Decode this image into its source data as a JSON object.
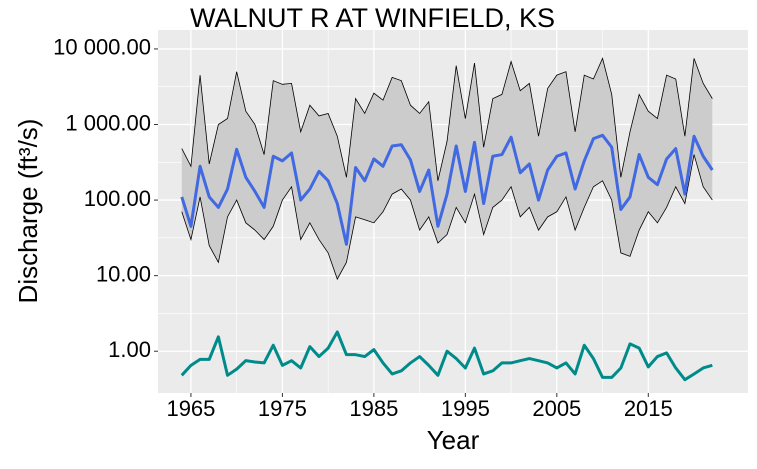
{
  "chart_data": {
    "type": "line",
    "title": "WALNUT R AT WINFIELD, KS",
    "x_label": "Year",
    "y_label": "Discharge (ft³/s)",
    "log_y": true,
    "grid": true,
    "x": [
      1964,
      1965,
      1966,
      1967,
      1968,
      1969,
      1970,
      1971,
      1972,
      1973,
      1974,
      1975,
      1976,
      1977,
      1978,
      1979,
      1980,
      1981,
      1982,
      1983,
      1984,
      1985,
      1986,
      1987,
      1988,
      1989,
      1990,
      1991,
      1992,
      1993,
      1994,
      1995,
      1996,
      1997,
      1998,
      1999,
      2000,
      2001,
      2002,
      2003,
      2004,
      2005,
      2006,
      2007,
      2008,
      2009,
      2010,
      2011,
      2012,
      2013,
      2014,
      2015,
      2016,
      2017,
      2018,
      2019,
      2020,
      2021,
      2022
    ],
    "band": {
      "color": "#cccccc",
      "lower": [
        70,
        30,
        110,
        25,
        15,
        60,
        100,
        50,
        40,
        30,
        45,
        100,
        150,
        30,
        50,
        30,
        20,
        9,
        15,
        60,
        55,
        50,
        70,
        120,
        140,
        100,
        40,
        60,
        27,
        35,
        80,
        50,
        120,
        35,
        80,
        100,
        150,
        60,
        80,
        40,
        60,
        70,
        110,
        40,
        80,
        150,
        180,
        100,
        20,
        18,
        40,
        70,
        50,
        80,
        150,
        90,
        400,
        150,
        100
      ],
      "upper": [
        480,
        280,
        4500,
        300,
        1000,
        1200,
        5000,
        1500,
        1000,
        400,
        3800,
        3400,
        3500,
        800,
        1800,
        1300,
        1400,
        700,
        200,
        2200,
        1400,
        2600,
        2100,
        4200,
        3800,
        1800,
        1400,
        2000,
        180,
        600,
        6000,
        1200,
        6500,
        500,
        2200,
        2500,
        6800,
        2800,
        3500,
        700,
        3000,
        4500,
        5000,
        800,
        4500,
        4000,
        7500,
        2500,
        200,
        800,
        2500,
        1500,
        1200,
        4500,
        4000,
        700,
        7500,
        3500,
        2200
      ]
    },
    "series": [
      {
        "color": "#4169e1",
        "values": [
          110,
          45,
          280,
          110,
          80,
          140,
          470,
          200,
          130,
          80,
          380,
          330,
          420,
          100,
          140,
          240,
          180,
          90,
          26,
          270,
          180,
          350,
          280,
          520,
          540,
          340,
          130,
          250,
          45,
          120,
          520,
          130,
          580,
          90,
          380,
          400,
          680,
          230,
          300,
          100,
          250,
          380,
          420,
          140,
          330,
          650,
          720,
          500,
          75,
          110,
          400,
          200,
          160,
          350,
          480,
          120,
          700,
          380,
          250
        ]
      },
      {
        "color": "#008b8b",
        "values": [
          0.48,
          0.65,
          0.78,
          0.78,
          1.55,
          0.48,
          0.58,
          0.75,
          0.72,
          0.7,
          1.2,
          0.65,
          0.75,
          0.6,
          1.15,
          0.85,
          1.1,
          1.8,
          0.9,
          0.9,
          0.85,
          1.05,
          0.7,
          0.5,
          0.55,
          0.7,
          0.85,
          0.65,
          0.48,
          1.0,
          0.8,
          0.6,
          1.1,
          0.5,
          0.55,
          0.7,
          0.7,
          0.75,
          0.8,
          0.75,
          0.7,
          0.6,
          0.7,
          0.5,
          1.2,
          0.8,
          0.45,
          0.45,
          0.6,
          1.25,
          1.1,
          0.62,
          0.85,
          0.95,
          0.6,
          0.42,
          0.5,
          0.6,
          0.65
        ]
      }
    ],
    "xlim": [
      1961.4,
      2025.9
    ],
    "xticks": [
      1965,
      1975,
      1985,
      1995,
      2005,
      2015
    ],
    "ylim": [
      0.28,
      17800
    ],
    "yticks": [
      {
        "value": 1,
        "label": "1.00"
      },
      {
        "value": 10,
        "label": "10.00"
      },
      {
        "value": 100,
        "label": "100.00"
      },
      {
        "value": 1000,
        "label": "1 000.00"
      },
      {
        "value": 10000,
        "label": "10 000.00"
      }
    ]
  }
}
